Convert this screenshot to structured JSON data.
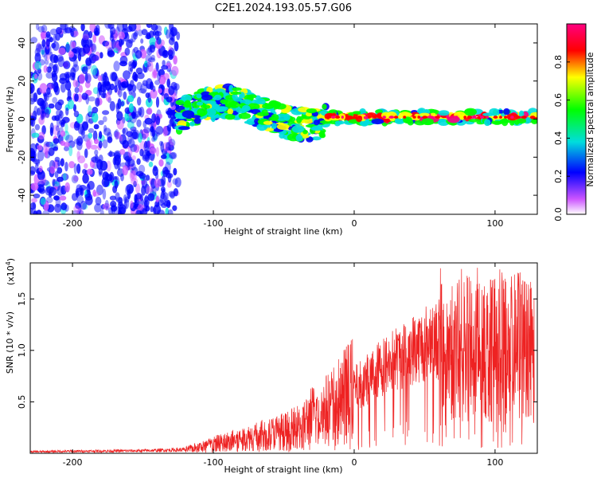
{
  "title": "C2E1.2024.193.05.57.G06",
  "chart_data": [
    {
      "type": "heatmap",
      "xlabel": "Height of straight line (km)",
      "ylabel": "Frequency (Hz)",
      "xlim": [
        -230,
        130
      ],
      "ylim": [
        -50,
        50
      ],
      "xticks": [
        -200,
        -100,
        0,
        100
      ],
      "yticks": [
        -40,
        -20,
        0,
        20,
        40
      ],
      "colorbar": {
        "label": "Normalized spectral amplitude",
        "range": [
          0.0,
          1.0
        ],
        "ticks": [
          "0.0",
          "0.2",
          "0.4",
          "0.6",
          "0.8"
        ],
        "colors": [
          "#ffffff",
          "#cc55ff",
          "#0000ff",
          "#00dddd",
          "#00ff00",
          "#ffff00",
          "#ff0000",
          "#ff0080"
        ]
      },
      "regions": [
        {
          "description_x": [
            -230,
            -125
          ],
          "freq_band": [
            -50,
            50
          ],
          "amplitude": 0.1
        },
        {
          "description_x": [
            -125,
            -20
          ],
          "freq_band": [
            -10,
            15
          ],
          "amplitude": 0.35
        },
        {
          "description_x": [
            -20,
            130
          ],
          "freq_band": [
            -2,
            4
          ],
          "amplitude": 0.75
        }
      ]
    },
    {
      "type": "line",
      "xlabel": "Height of straight line (km)",
      "ylabel": "SNR (10 * v/v)",
      "yscale_label": "(x10",
      "yscale_exp": "4",
      "xlim": [
        -230,
        130
      ],
      "ylim": [
        0,
        18500
      ],
      "xticks": [
        -200,
        -100,
        0,
        100
      ],
      "yticks": [
        "0.5",
        "1.0",
        "1.5"
      ],
      "ytick_values": [
        5000,
        10000,
        15000
      ],
      "color": "#ee2222",
      "envelope": {
        "x": [
          -230,
          -200,
          -150,
          -120,
          -110,
          -100,
          -80,
          -60,
          -40,
          -30,
          -20,
          -10,
          0,
          10,
          20,
          30,
          40,
          50,
          55,
          60,
          70,
          80,
          90,
          100,
          110,
          120,
          125,
          128
        ],
        "y": [
          150,
          200,
          250,
          350,
          600,
          900,
          1400,
          1900,
          2500,
          3600,
          4200,
          5300,
          6300,
          7300,
          8400,
          9200,
          10000,
          10600,
          11500,
          10700,
          10000,
          10300,
          10100,
          10000,
          10100,
          10600,
          10300,
          9800
        ]
      }
    }
  ]
}
